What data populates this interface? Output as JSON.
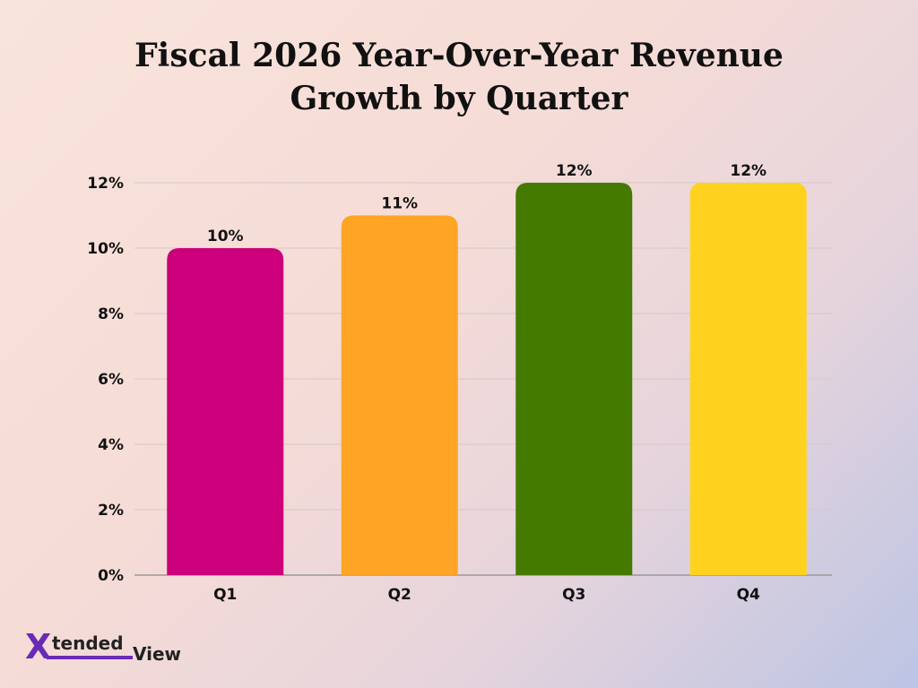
{
  "chart_data": {
    "type": "bar",
    "title_lines": [
      "Fiscal 2026 Year-Over-Year Revenue",
      "Growth by Quarter"
    ],
    "categories": [
      "Q1",
      "Q2",
      "Q3",
      "Q4"
    ],
    "values": [
      10,
      11,
      12,
      12
    ],
    "value_labels": [
      "10%",
      "11%",
      "12%",
      "12%"
    ],
    "colors": [
      "#cc007a",
      "#ffa424",
      "#457a00",
      "#ffd21f"
    ],
    "yticks": [
      "0%",
      "2%",
      "4%",
      "6%",
      "8%",
      "10%",
      "12%"
    ],
    "ylim": [
      0,
      12
    ],
    "grid": true
  },
  "logo": {
    "x": "X",
    "tended": "tended",
    "view": "View"
  }
}
